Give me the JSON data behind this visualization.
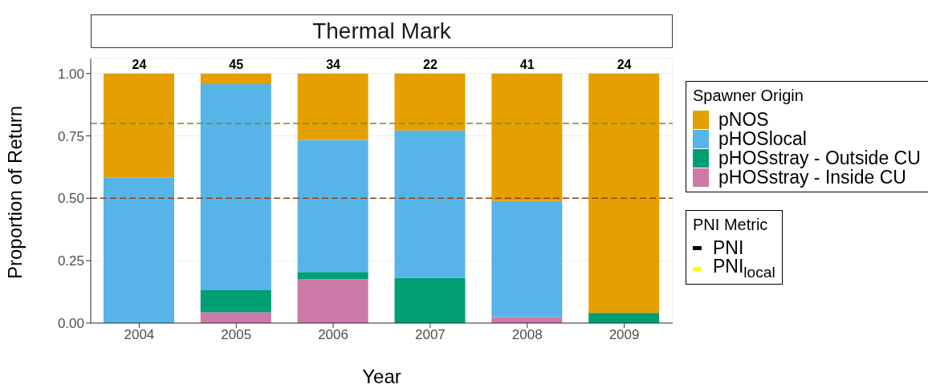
{
  "chart_data": {
    "type": "bar",
    "title": "Thermal Mark",
    "xlabel": "Year",
    "ylabel": "Proportion of Return",
    "legend_title": "Spawner Origin",
    "categories": [
      "2004",
      "2005",
      "2006",
      "2007",
      "2008",
      "2009"
    ],
    "stacked": true,
    "series": [
      {
        "name": "pHOSstray - Inside CU",
        "color": "#cc79a7",
        "values": [
          0,
          0.043,
          0.176,
          0,
          0.024,
          0
        ]
      },
      {
        "name": "pHOSstray - Outside CU",
        "color": "#009e73",
        "values": [
          0,
          0.089,
          0.029,
          0.181,
          0,
          0.041
        ]
      },
      {
        "name": "pHOSlocal",
        "color": "#56b4e9",
        "values": [
          0.582,
          0.825,
          0.529,
          0.591,
          0.465,
          0
        ]
      },
      {
        "name": "pNOS",
        "color": "#e69f00",
        "values": [
          0.418,
          0.043,
          0.266,
          0.228,
          0.511,
          0.959
        ]
      },
      {
        "name": "PNI",
        "type": "line",
        "color": "#000000",
        "values": [
          null,
          null,
          null,
          null,
          null,
          null
        ]
      },
      {
        "name": "PNI$_{local}$",
        "type": "line",
        "color": "#ffff00",
        "values": [
          null,
          null,
          null,
          null,
          null,
          null
        ]
      }
    ],
    "ylim": [
      0,
      1.06
    ],
    "yticks": [
      {
        "value": 0,
        "label": "0.00"
      },
      {
        "value": 0.25,
        "label": "0.25"
      },
      {
        "value": 0.5,
        "label": "0.50"
      },
      {
        "value": 0.75,
        "label": "0.75"
      },
      {
        "value": 1,
        "label": "1.00"
      }
    ],
    "grid": true,
    "legend": "right",
    "ref_lines": [
      {
        "axis": "y",
        "value": 0.8,
        "color": "#6b8e23",
        "line_style": "dashed"
      },
      {
        "axis": "y",
        "value": 0.5,
        "color": "#8b4513",
        "line_style": "dashed"
      }
    ],
    "annotations": [
      {
        "text": "24",
        "x": "2004",
        "y": 1
      },
      {
        "text": "45",
        "x": "2005",
        "y": 1
      },
      {
        "text": "34",
        "x": "2006",
        "y": 1
      },
      {
        "text": "22",
        "x": "2007",
        "y": 1
      },
      {
        "text": "41",
        "x": "2008",
        "y": 1
      },
      {
        "text": "24",
        "x": "2009",
        "y": 1
      },
      "PNI Metric"
    ]
  }
}
